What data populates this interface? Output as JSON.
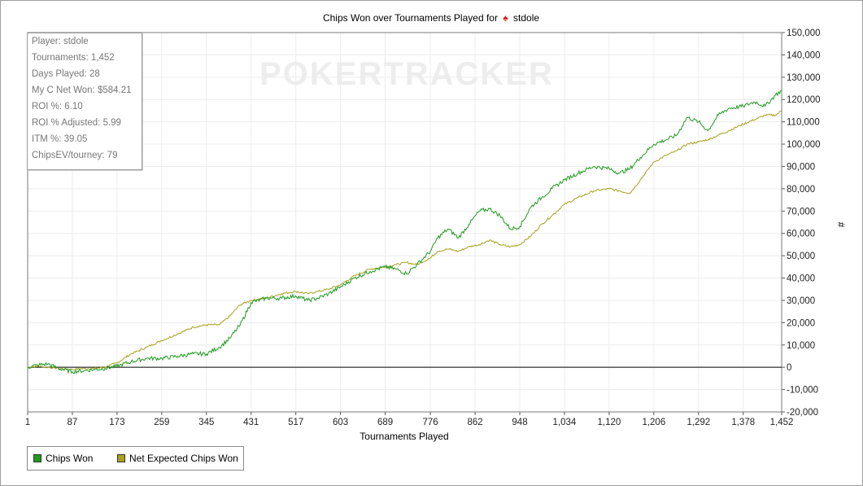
{
  "chart_data": {
    "type": "line",
    "title": "Chips Won over Tournaments Played for",
    "title_player": "stdole",
    "title_icon": "spade-icon",
    "xlabel": "Tournaments Played",
    "ylabel": "#",
    "xlim": [
      1,
      1452
    ],
    "ylim": [
      -20000,
      150000
    ],
    "x_ticks": [
      1,
      87,
      173,
      259,
      345,
      431,
      517,
      603,
      689,
      776,
      862,
      948,
      1034,
      1120,
      1206,
      1292,
      1378,
      1452
    ],
    "x_tick_labels": [
      "1",
      "87",
      "173",
      "259",
      "345",
      "431",
      "517",
      "603",
      "689",
      "776",
      "862",
      "948",
      "1,034",
      "1,120",
      "1,206",
      "1,292",
      "1,378",
      "1,452"
    ],
    "y_ticks": [
      -20000,
      -10000,
      0,
      10000,
      20000,
      30000,
      40000,
      50000,
      60000,
      70000,
      80000,
      90000,
      100000,
      110000,
      120000,
      130000,
      140000,
      150000
    ],
    "y_tick_labels": [
      "-20,000",
      "-10,000",
      "0",
      "10,000",
      "20,000",
      "30,000",
      "40,000",
      "50,000",
      "60,000",
      "70,000",
      "80,000",
      "90,000",
      "100,000",
      "110,000",
      "120,000",
      "130,000",
      "140,000",
      "150,000"
    ],
    "grid": true,
    "watermark": "POKERTRACKER",
    "legend_position": "bottom-left",
    "series": [
      {
        "name": "Chips Won",
        "color": "#1e9a1e",
        "x": [
          1,
          20,
          40,
          60,
          87,
          110,
          130,
          150,
          173,
          200,
          230,
          259,
          290,
          320,
          345,
          370,
          390,
          410,
          431,
          460,
          490,
          517,
          540,
          560,
          580,
          603,
          630,
          660,
          689,
          710,
          730,
          750,
          776,
          790,
          810,
          830,
          850,
          870,
          890,
          910,
          930,
          948,
          970,
          990,
          1010,
          1034,
          1060,
          1090,
          1120,
          1140,
          1160,
          1180,
          1206,
          1230,
          1250,
          1270,
          1292,
          1310,
          1330,
          1350,
          1378,
          1400,
          1420,
          1440,
          1452
        ],
        "y": [
          0,
          1000,
          1500,
          -500,
          -2000,
          -1500,
          -1000,
          -500,
          500,
          2500,
          4000,
          4000,
          5000,
          6000,
          6000,
          9000,
          13000,
          19000,
          29000,
          31000,
          31000,
          32000,
          30000,
          31000,
          33000,
          36000,
          40000,
          43000,
          45000,
          44000,
          42000,
          46000,
          52000,
          58000,
          62000,
          58000,
          64000,
          70000,
          71000,
          68000,
          62000,
          63000,
          72000,
          76000,
          80000,
          84000,
          87000,
          90000,
          89000,
          87000,
          89000,
          94000,
          100000,
          102000,
          104000,
          112000,
          110000,
          106000,
          113000,
          116000,
          117000,
          119000,
          117000,
          122000,
          124000
        ]
      },
      {
        "name": "Net Expected Chips Won",
        "color": "#a8a01e",
        "x": [
          1,
          20,
          40,
          60,
          87,
          110,
          130,
          150,
          173,
          200,
          230,
          259,
          290,
          320,
          345,
          370,
          390,
          410,
          431,
          460,
          490,
          517,
          540,
          560,
          580,
          603,
          630,
          660,
          689,
          710,
          730,
          750,
          776,
          790,
          810,
          830,
          850,
          870,
          890,
          910,
          930,
          948,
          970,
          990,
          1010,
          1034,
          1060,
          1090,
          1120,
          1140,
          1160,
          1180,
          1206,
          1230,
          1250,
          1270,
          1292,
          1310,
          1330,
          1350,
          1378,
          1400,
          1420,
          1440,
          1452
        ],
        "y": [
          0,
          500,
          0,
          -500,
          -1000,
          -500,
          -500,
          0,
          2000,
          6000,
          9000,
          12000,
          15000,
          18000,
          19000,
          19000,
          23000,
          28000,
          30000,
          31000,
          33000,
          34000,
          33000,
          34000,
          35000,
          37000,
          41000,
          44000,
          45000,
          46000,
          47000,
          46000,
          49000,
          52000,
          53000,
          52000,
          54000,
          55000,
          57000,
          55000,
          54000,
          55000,
          59000,
          64000,
          68000,
          73000,
          76000,
          79000,
          80000,
          79000,
          78000,
          84000,
          92000,
          95000,
          97000,
          100000,
          101000,
          102000,
          104000,
          106000,
          109000,
          111000,
          113000,
          113000,
          115000
        ]
      }
    ]
  },
  "stats": {
    "player": "Player: stdole",
    "tournaments": "Tournaments: 1,452",
    "days_played": "Days Played: 28",
    "net_won": "My C Net Won: $584.21",
    "roi": "ROI %: 6.10",
    "roi_adjusted": "ROI % Adjusted: 5.99",
    "itm": "ITM %: 39.05",
    "chips_ev": "ChipsEV/tourney: 79"
  },
  "legend": {
    "chips_won": "Chips Won",
    "net_expected": "Net Expected Chips Won"
  }
}
